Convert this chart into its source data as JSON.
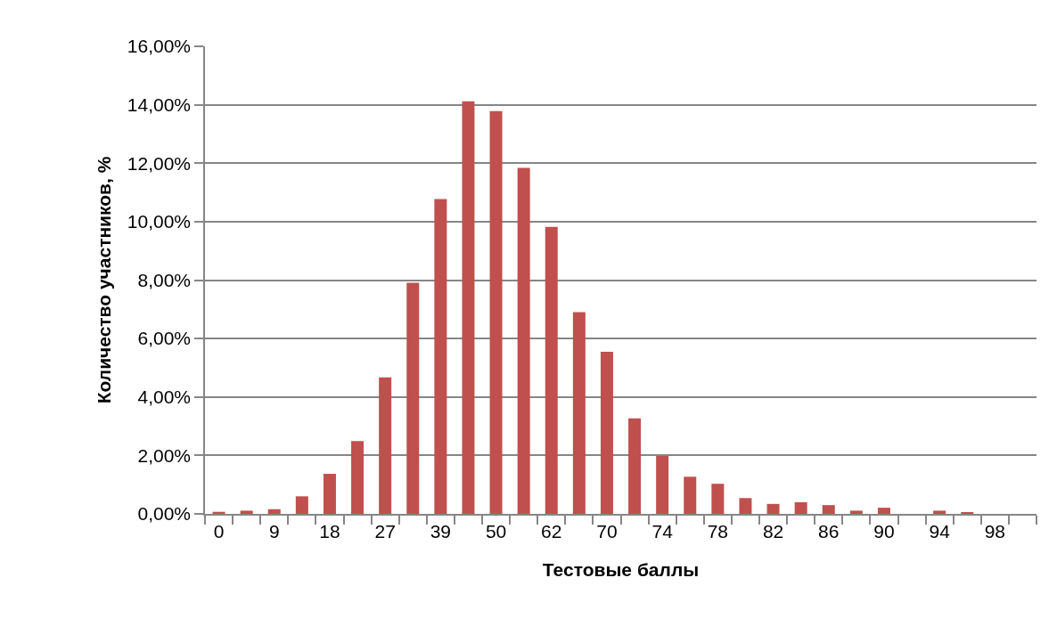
{
  "chart_data": {
    "type": "bar",
    "xlabel": "Тестовые баллы",
    "ylabel": "Количество участников, %",
    "categories": [
      "0",
      null,
      "9",
      null,
      "18",
      null,
      "27",
      null,
      "39",
      null,
      "50",
      null,
      "62",
      null,
      "70",
      null,
      "74",
      null,
      "78",
      null,
      "82",
      null,
      "86",
      null,
      "90",
      null,
      "94",
      null,
      "98",
      null
    ],
    "values": [
      0.07,
      0.11,
      0.16,
      0.6,
      1.37,
      2.49,
      4.67,
      7.91,
      10.77,
      14.12,
      13.78,
      11.84,
      9.82,
      6.9,
      5.55,
      3.27,
      1.98,
      1.27,
      1.03,
      0.54,
      0.34,
      0.4,
      0.3,
      0.11,
      0.21,
      0,
      0.11,
      0.06,
      0,
      0
    ],
    "color": "#c0504d",
    "ylim": [
      0,
      16
    ],
    "yticks": [
      {
        "value": 0,
        "label": "0,00%"
      },
      {
        "value": 2,
        "label": "2,00%"
      },
      {
        "value": 4,
        "label": "4,00%"
      },
      {
        "value": 6,
        "label": "6,00%"
      },
      {
        "value": 8,
        "label": "8,00%"
      },
      {
        "value": 10,
        "label": "10,00%"
      },
      {
        "value": 12,
        "label": "12,00%"
      },
      {
        "value": 14,
        "label": "14,00%"
      },
      {
        "value": 16,
        "label": "16,00%"
      }
    ],
    "grid": "y"
  }
}
